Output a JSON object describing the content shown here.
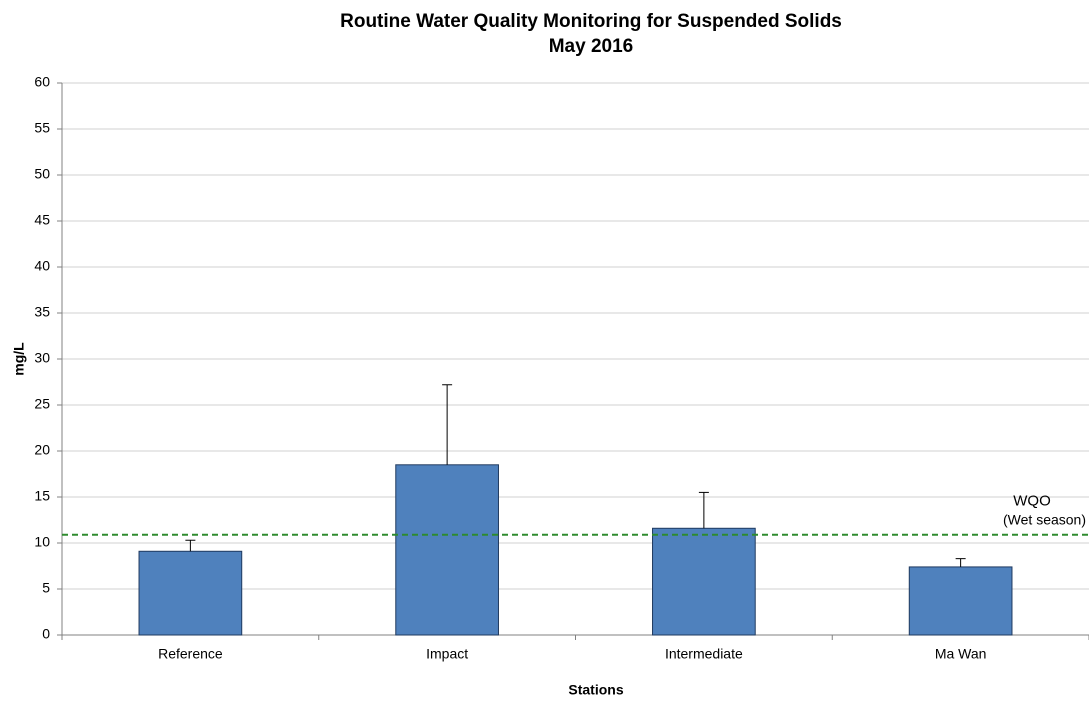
{
  "chart_data": {
    "type": "bar",
    "title": "Routine Water Quality Monitoring for Suspended Solids",
    "subtitle": "May 2016",
    "x_label": "Stations",
    "y_label": "mg/L",
    "categories": [
      "Reference",
      "Impact",
      "Intermediate",
      "Ma Wan"
    ],
    "values": [
      9.1,
      18.5,
      11.6,
      7.4
    ],
    "errors": [
      1.2,
      8.7,
      3.9,
      0.9
    ],
    "color": "#4f81bd",
    "ylim": [
      0,
      60
    ],
    "yticks": [
      0,
      5,
      10,
      15,
      20,
      25,
      30,
      35,
      40,
      45,
      50,
      55,
      60
    ],
    "grid": true,
    "reference_line": {
      "value": 10.9,
      "label": "WQO",
      "sublabel": "(Wet season)",
      "color": "#2e8b2e"
    }
  }
}
